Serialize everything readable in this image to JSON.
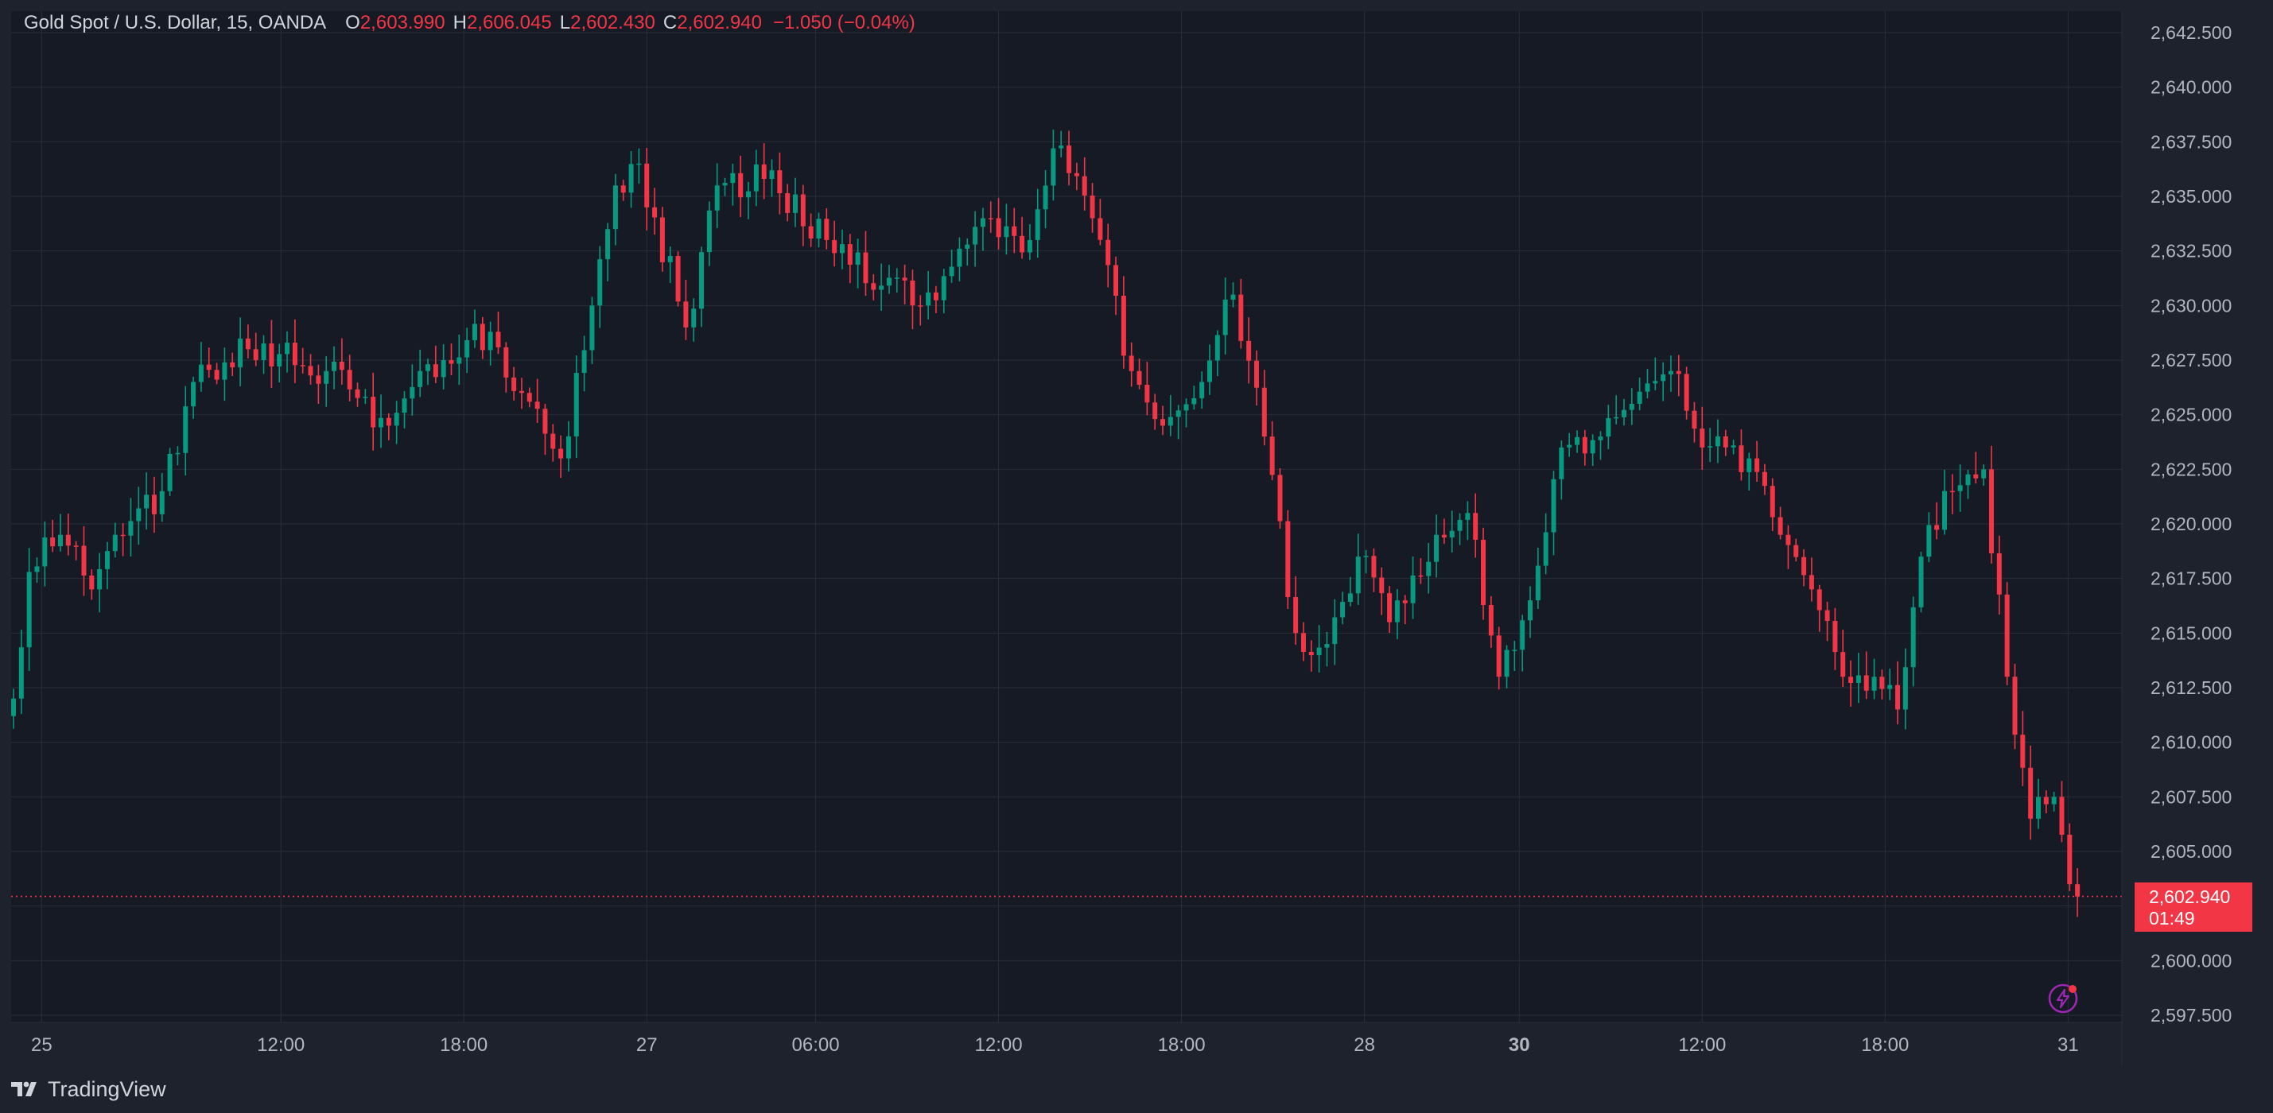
{
  "legend": {
    "symbol": "Gold Spot / U.S. Dollar, 15, OANDA",
    "open_label": "O",
    "open": "2,603.990",
    "high_label": "H",
    "high": "2,606.045",
    "low_label": "L",
    "low": "2,602.430",
    "close_label": "C",
    "close": "2,602.940",
    "change": "−1.050 (−0.04%)"
  },
  "price_badge": {
    "price": "2,602.940",
    "countdown": "01:49"
  },
  "footer": {
    "brand": "TradingView"
  },
  "colors": {
    "background": "#1e222d",
    "plot_background": "#161a25",
    "grid": "#2a2e39",
    "up": "#089981",
    "down": "#f23645",
    "text": "#b2b5be",
    "alert_icon": "#9c27b0"
  },
  "icons": {
    "alert": "lightning-icon",
    "brand": "tradingview-logo-icon"
  },
  "chart_data": {
    "type": "candlestick",
    "title": "Gold Spot / U.S. Dollar, 15, OANDA",
    "interval": "15",
    "y_axis": {
      "range": [
        2597.5,
        2643.5
      ],
      "ticks": [
        "2,642.500",
        "2,640.000",
        "2,637.500",
        "2,635.000",
        "2,632.500",
        "2,630.000",
        "2,627.500",
        "2,625.000",
        "2,622.500",
        "2,620.000",
        "2,617.500",
        "2,615.000",
        "2,612.500",
        "2,610.000",
        "2,607.500",
        "2,605.000",
        "2,602.500",
        "2,600.000",
        "2,597.500"
      ],
      "tick_values": [
        2642.5,
        2640,
        2637.5,
        2635,
        2632.5,
        2630,
        2627.5,
        2625,
        2622.5,
        2620,
        2617.5,
        2615,
        2612.5,
        2610,
        2607.5,
        2605,
        2602.5,
        2600,
        2597.5
      ]
    },
    "x_axis": {
      "labels": [
        "25",
        "12:00",
        "18:00",
        "27",
        "06:00",
        "12:00",
        "18:00",
        "28",
        "30",
        "12:00",
        "18:00",
        "31"
      ],
      "bold": [
        false,
        false,
        false,
        false,
        false,
        false,
        false,
        false,
        true,
        false,
        false,
        false
      ]
    },
    "last_price": 2602.94,
    "key_points": [
      {
        "i": 0,
        "v": 2612
      },
      {
        "i": 2,
        "v": 2617.8
      },
      {
        "i": 6,
        "v": 2619.5
      },
      {
        "i": 10,
        "v": 2617
      },
      {
        "i": 13,
        "v": 2619.5
      },
      {
        "i": 19,
        "v": 2621.5
      },
      {
        "i": 23,
        "v": 2626.5
      },
      {
        "i": 30,
        "v": 2628
      },
      {
        "i": 40,
        "v": 2627
      },
      {
        "i": 48,
        "v": 2624.5
      },
      {
        "i": 55,
        "v": 2627.5
      },
      {
        "i": 61,
        "v": 2628.8
      },
      {
        "i": 65,
        "v": 2626
      },
      {
        "i": 70,
        "v": 2623
      },
      {
        "i": 74,
        "v": 2630
      },
      {
        "i": 77,
        "v": 2635.5
      },
      {
        "i": 80,
        "v": 2636.5
      },
      {
        "i": 86,
        "v": 2629
      },
      {
        "i": 90,
        "v": 2635.5
      },
      {
        "i": 96,
        "v": 2635.8
      },
      {
        "i": 104,
        "v": 2633
      },
      {
        "i": 116,
        "v": 2630
      },
      {
        "i": 124,
        "v": 2634
      },
      {
        "i": 130,
        "v": 2633
      },
      {
        "i": 133,
        "v": 2637.2
      },
      {
        "i": 138,
        "v": 2634
      },
      {
        "i": 143,
        "v": 2627
      },
      {
        "i": 147,
        "v": 2624.5
      },
      {
        "i": 152,
        "v": 2626.5
      },
      {
        "i": 156,
        "v": 2630.5
      },
      {
        "i": 160,
        "v": 2624
      },
      {
        "i": 164,
        "v": 2615
      },
      {
        "i": 168,
        "v": 2614.5
      },
      {
        "i": 172,
        "v": 2618.5
      },
      {
        "i": 176,
        "v": 2615.5
      },
      {
        "i": 182,
        "v": 2619.5
      },
      {
        "i": 186,
        "v": 2620.5
      },
      {
        "i": 190,
        "v": 2613
      },
      {
        "i": 194,
        "v": 2616.5
      },
      {
        "i": 198,
        "v": 2623.5
      },
      {
        "i": 203,
        "v": 2624
      },
      {
        "i": 207,
        "v": 2625.5
      },
      {
        "i": 212,
        "v": 2627
      },
      {
        "i": 216,
        "v": 2623.5
      },
      {
        "i": 222,
        "v": 2623
      },
      {
        "i": 226,
        "v": 2619.5
      },
      {
        "i": 230,
        "v": 2617
      },
      {
        "i": 234,
        "v": 2613
      },
      {
        "i": 238,
        "v": 2613
      },
      {
        "i": 241,
        "v": 2611.5
      },
      {
        "i": 244,
        "v": 2618.5
      },
      {
        "i": 248,
        "v": 2621.5
      },
      {
        "i": 252,
        "v": 2622.5
      },
      {
        "i": 255,
        "v": 2613
      },
      {
        "i": 258,
        "v": 2606.5
      },
      {
        "i": 261,
        "v": 2607.5
      },
      {
        "i": 263,
        "v": 2603.5
      },
      {
        "i": 264,
        "v": 2602.94
      }
    ]
  }
}
